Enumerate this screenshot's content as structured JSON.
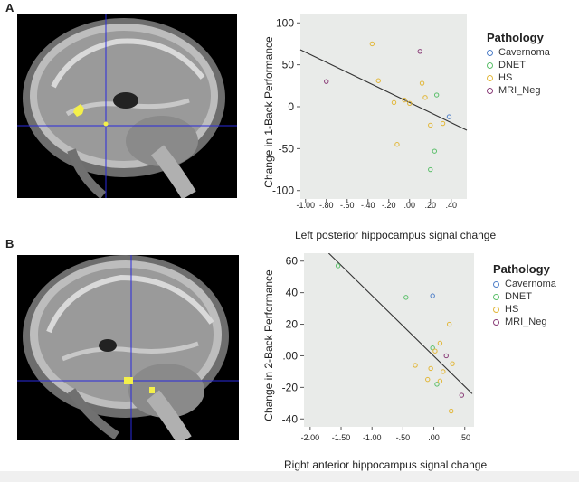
{
  "panels": [
    {
      "label": "A"
    },
    {
      "label": "B"
    }
  ],
  "colors": {
    "Cavernoma": "#4f7fc8",
    "DNET": "#5bbf6a",
    "HS": "#e2b73a",
    "MRI_Neg": "#8a3e78",
    "plot_bg": "#e9ebe9",
    "fit_line": "#333333",
    "crosshair": "#2a2adc",
    "activation": "#f4f04a"
  },
  "chart_data": [
    {
      "type": "scatter",
      "title": "",
      "xlabel": "Left posterior hippocampus signal change",
      "ylabel": "Change in 1-Back Performance",
      "xlim": [
        -1.05,
        0.55
      ],
      "ylim": [
        -110,
        110
      ],
      "xticks": [
        -1.0,
        -0.8,
        -0.6,
        -0.4,
        -0.2,
        0.0,
        0.2,
        0.4
      ],
      "xtick_labels": [
        "-1.00",
        "-.80",
        "-.60",
        "-.40",
        "-.20",
        ".00",
        ".20",
        ".40"
      ],
      "yticks": [
        100,
        50,
        0,
        -50,
        -100
      ],
      "ytick_labels": [
        "100",
        "50",
        "0",
        "-50",
        "-100"
      ],
      "legend_title": "Pathology",
      "legend": [
        "Cavernoma",
        "DNET",
        "HS",
        "MRI_Neg"
      ],
      "legend_position": "right",
      "fit_line": [
        [
          -1.05,
          68
        ],
        [
          0.55,
          -28
        ]
      ],
      "series": [
        {
          "name": "Cavernoma",
          "points": [
            [
              0.38,
              -12
            ]
          ]
        },
        {
          "name": "DNET",
          "points": [
            [
              0.24,
              -53
            ],
            [
              0.2,
              -75
            ],
            [
              0.26,
              14
            ]
          ]
        },
        {
          "name": "HS",
          "points": [
            [
              -0.36,
              75
            ],
            [
              -0.3,
              31
            ],
            [
              0.12,
              28
            ],
            [
              0.15,
              11
            ],
            [
              -0.15,
              5
            ],
            [
              -0.05,
              8
            ],
            [
              0.0,
              4
            ],
            [
              0.2,
              -22
            ],
            [
              -0.12,
              -45
            ],
            [
              0.32,
              -20
            ]
          ]
        },
        {
          "name": "MRI_Neg",
          "points": [
            [
              -0.8,
              30
            ],
            [
              0.1,
              66
            ]
          ]
        }
      ]
    },
    {
      "type": "scatter",
      "title": "",
      "xlabel": "Right anterior hippocampus signal change",
      "ylabel": "Change in 2-Back Performance",
      "xlim": [
        -2.1,
        0.65
      ],
      "ylim": [
        -45,
        65
      ],
      "xticks": [
        -2.0,
        -1.5,
        -1.0,
        -0.5,
        0.0,
        0.5
      ],
      "xtick_labels": [
        "-2.00",
        "-1.50",
        "-1.00",
        "-.50",
        ".00",
        ".50"
      ],
      "yticks": [
        60,
        40,
        20,
        0,
        -20,
        -40
      ],
      "ytick_labels": [
        "60",
        "40",
        "20",
        ".00",
        "-20",
        "-40"
      ],
      "legend_title": "Pathology",
      "legend": [
        "Cavernoma",
        "DNET",
        "HS",
        "MRI_Neg"
      ],
      "legend_position": "right",
      "fit_line": [
        [
          -1.7,
          65
        ],
        [
          0.62,
          -24
        ]
      ],
      "series": [
        {
          "name": "Cavernoma",
          "points": [
            [
              -0.02,
              38
            ]
          ]
        },
        {
          "name": "DNET",
          "points": [
            [
              -1.55,
              57
            ],
            [
              -0.45,
              37
            ],
            [
              0.05,
              -18
            ],
            [
              -0.02,
              5
            ]
          ]
        },
        {
          "name": "HS",
          "points": [
            [
              0.25,
              20
            ],
            [
              0.1,
              8
            ],
            [
              0.3,
              -5
            ],
            [
              -0.05,
              -8
            ],
            [
              0.15,
              -10
            ],
            [
              -0.1,
              -15
            ],
            [
              -0.3,
              -6
            ],
            [
              0.02,
              3
            ],
            [
              0.28,
              -35
            ],
            [
              0.1,
              -16
            ]
          ]
        },
        {
          "name": "MRI_Neg",
          "points": [
            [
              0.2,
              0
            ],
            [
              0.45,
              -25
            ]
          ]
        }
      ]
    }
  ]
}
